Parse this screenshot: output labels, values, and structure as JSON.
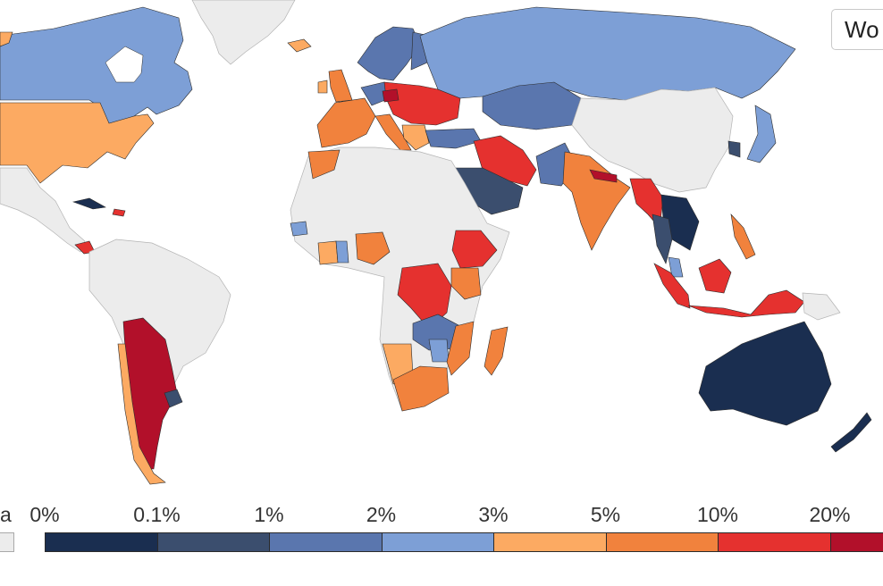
{
  "region_selector": {
    "label": "Wo"
  },
  "legend": {
    "no_data_label": "a",
    "ticks": [
      "0%",
      "0.1%",
      "1%",
      "2%",
      "3%",
      "5%",
      "10%",
      "20%"
    ],
    "bin_colors": [
      "#1a2e50",
      "#3b4e6e",
      "#5a76ae",
      "#7d9fd6",
      "#fcaa62",
      "#f1823d",
      "#e5312f",
      "#b2102a"
    ],
    "no_data_color": "#ececec"
  },
  "colors": {
    "no_data": "#ececec",
    "ocean": "#ffffff",
    "border": "#2b2b2b"
  }
}
